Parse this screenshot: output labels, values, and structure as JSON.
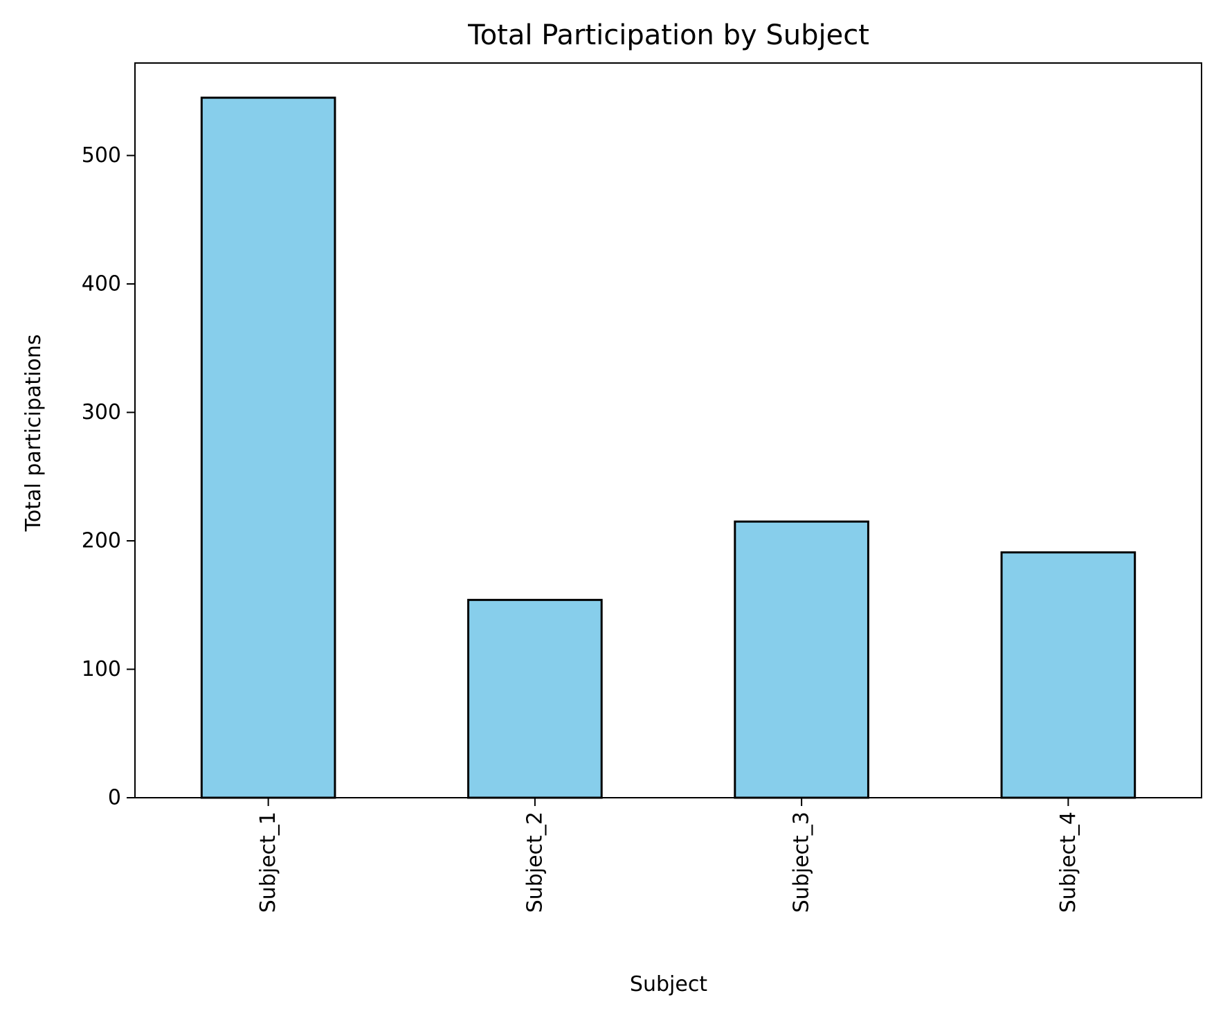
{
  "chart_data": {
    "type": "bar",
    "title": "Total Participation by Subject",
    "xlabel": "Subject",
    "ylabel": "Total participations",
    "categories": [
      "Subject_1",
      "Subject_2",
      "Subject_3",
      "Subject_4"
    ],
    "values": [
      545,
      154,
      215,
      191
    ],
    "ylim": [
      0,
      572
    ],
    "yticks": [
      0,
      100,
      200,
      300,
      400,
      500
    ],
    "grid": false,
    "legend": "none",
    "bar_color": "#87CEEB",
    "bar_edge_color": "#000000",
    "x_tick_rotation": "vertical"
  }
}
